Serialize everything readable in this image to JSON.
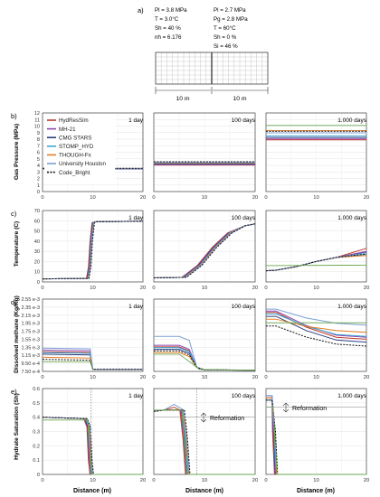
{
  "figure": {
    "panel_labels": [
      "a)",
      "b)",
      "c)",
      "d)",
      "e)"
    ],
    "schematic": {
      "left_params": [
        "Pl = 3.8 MPa",
        "T  = 3.0°C",
        "Sh = 40 %",
        "nh = 6.176"
      ],
      "right_params": [
        "Pl = 2.7 MPa",
        "Pg = 2.8 MPa",
        "T  = 60°C",
        "Sh = 0 %",
        "Si = 46 %"
      ],
      "left_width": "10 m",
      "right_width": "10 m"
    },
    "xlabel": "Distance (m)",
    "legend": [
      "HydResSim",
      "MH-21",
      "CMG STARS",
      "STOMP_HYD",
      "THOUGH-Fx",
      "University Houston",
      "Code_Bright"
    ],
    "colors": {
      "HydResSim": "#c0392b",
      "MH-21": "#8e44ad",
      "CMG STARS": "#2c3e80",
      "STOMP_HYD": "#3fa7d6",
      "THOUGH-Fx": "#e67e22",
      "University Houston": "#7b9fd4",
      "Code_Bright": "#111111",
      "green": "#6aa84f"
    },
    "annotations": [
      "Reformation",
      "Reformation"
    ]
  },
  "chart_data": [
    {
      "type": "line",
      "row": "b",
      "ylabel": "Gas Pressure (MPa)",
      "yticks": [
        "0",
        "1",
        "2",
        "3",
        "4",
        "5",
        "6",
        "7",
        "8",
        "9",
        "10",
        "11",
        "12"
      ],
      "ylim": [
        0,
        12
      ],
      "xlim": [
        0,
        20
      ],
      "xticks": [
        "0",
        "10",
        "20"
      ],
      "times": [
        "1 day",
        "100 days",
        "1.000 days"
      ]
    },
    {
      "type": "line",
      "row": "c",
      "ylabel": "Temperature (C)",
      "yticks": [
        "0",
        "10",
        "20",
        "30",
        "40",
        "50",
        "60",
        "70"
      ],
      "ylim": [
        0,
        70
      ],
      "xlim": [
        0,
        20
      ],
      "xticks": [
        "0",
        "10",
        "20"
      ],
      "times": [
        "1 day",
        "100 days",
        "1.000 days"
      ]
    },
    {
      "type": "line",
      "row": "d",
      "ylabel": "Dissolved methane (Kg/Kg)",
      "yticks": [
        "7.50 e-4",
        "9.50 e-4",
        "1.15 e-3",
        "1.35 e-3",
        "1.55 e-3",
        "1.75 e-3",
        "1.95 e-3",
        "2.15 e-3",
        "2.35 e-3",
        "2.55 e-3"
      ],
      "ylim": [
        0.00075,
        0.00255
      ],
      "xlim": [
        0,
        20
      ],
      "xticks": [
        "0",
        "10",
        "20"
      ],
      "times": [
        "1 day",
        "100 days",
        "1.000 days"
      ]
    },
    {
      "type": "line",
      "row": "e",
      "ylabel": "Hydrate Saturation (Sh)",
      "yticks": [
        "0",
        "0.1",
        "0.2",
        "0.3",
        "0.4",
        "0.5",
        "0.6"
      ],
      "ylim": [
        0,
        0.6
      ],
      "xlim": [
        0,
        20
      ],
      "xticks": [
        "0",
        "10",
        "20"
      ],
      "times": [
        "1 day",
        "100 days",
        "1.000 days"
      ]
    }
  ]
}
